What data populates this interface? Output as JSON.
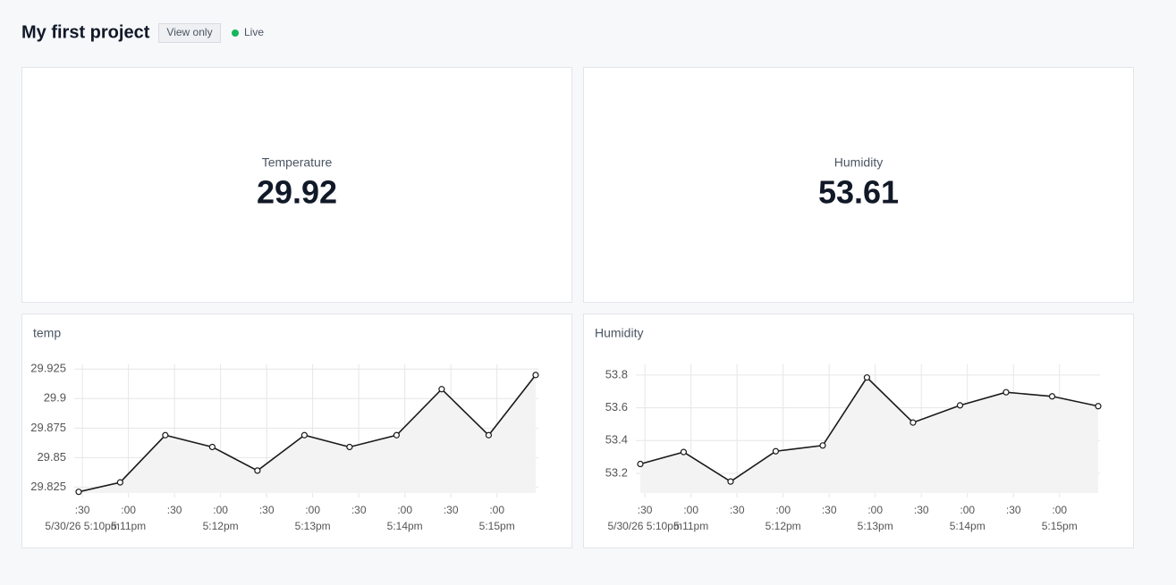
{
  "header": {
    "title": "My first project",
    "badge": "View only",
    "status": "Live"
  },
  "widgets": [
    {
      "label": "Temperature",
      "value": "29.92"
    },
    {
      "label": "Humidity",
      "value": "53.61"
    }
  ],
  "chart_data": [
    {
      "type": "line",
      "title": "temp",
      "color": "#1a1a1a",
      "grid": true,
      "x": [
        10.46,
        10.91,
        11.4,
        11.91,
        12.4,
        12.91,
        13.4,
        13.91,
        14.4,
        14.91,
        15.42
      ],
      "values": [
        29.821,
        29.829,
        29.869,
        29.859,
        29.839,
        29.869,
        29.859,
        29.869,
        29.908,
        29.869,
        29.92
      ],
      "xlim": [
        10.46,
        15.43
      ],
      "ylim": [
        29.82,
        29.929
      ],
      "yticks": [
        29.825,
        29.85,
        29.875,
        29.9,
        29.925
      ],
      "xticks": [
        {
          "value": 10.5,
          "label": ":30"
        },
        {
          "value": 11,
          "label": ":00"
        },
        {
          "value": 11.5,
          "label": ":30"
        },
        {
          "value": 12,
          "label": ":00"
        },
        {
          "value": 12.5,
          "label": ":30"
        },
        {
          "value": 13,
          "label": ":00"
        },
        {
          "value": 13.5,
          "label": ":30"
        },
        {
          "value": 14,
          "label": ":00"
        },
        {
          "value": 14.5,
          "label": ":30"
        },
        {
          "value": 15,
          "label": ":00"
        }
      ],
      "xticks2": [
        {
          "value": 10.5,
          "label": "5/30/26 5:10pm"
        },
        {
          "value": 11,
          "label": "5:11pm"
        },
        {
          "value": 12,
          "label": "5:12pm"
        },
        {
          "value": 13,
          "label": "5:13pm"
        },
        {
          "value": 14,
          "label": "5:14pm"
        },
        {
          "value": 15,
          "label": "5:15pm"
        }
      ]
    },
    {
      "type": "line",
      "title": "Humidity",
      "color": "#1a1a1a",
      "grid": true,
      "x": [
        10.45,
        10.92,
        11.43,
        11.92,
        12.43,
        12.91,
        13.41,
        13.92,
        14.42,
        14.92,
        15.42
      ],
      "values": [
        53.257,
        53.33,
        53.15,
        53.335,
        53.37,
        53.785,
        53.51,
        53.615,
        53.695,
        53.67,
        53.61
      ],
      "xlim": [
        10.45,
        15.42
      ],
      "ylim": [
        53.08,
        53.865
      ],
      "yticks": [
        53.2,
        53.4,
        53.6,
        53.8
      ],
      "xticks": [
        {
          "value": 10.5,
          "label": ":30"
        },
        {
          "value": 11,
          "label": ":00"
        },
        {
          "value": 11.5,
          "label": ":30"
        },
        {
          "value": 12,
          "label": ":00"
        },
        {
          "value": 12.5,
          "label": ":30"
        },
        {
          "value": 13,
          "label": ":00"
        },
        {
          "value": 13.5,
          "label": ":30"
        },
        {
          "value": 14,
          "label": ":00"
        },
        {
          "value": 14.5,
          "label": ":30"
        },
        {
          "value": 15,
          "label": ":00"
        }
      ],
      "xticks2": [
        {
          "value": 10.5,
          "label": "5/30/26 5:10pm"
        },
        {
          "value": 11,
          "label": "5:11pm"
        },
        {
          "value": 12,
          "label": "5:12pm"
        },
        {
          "value": 13,
          "label": "5:13pm"
        },
        {
          "value": 14,
          "label": "5:14pm"
        },
        {
          "value": 15,
          "label": "5:15pm"
        }
      ]
    }
  ]
}
